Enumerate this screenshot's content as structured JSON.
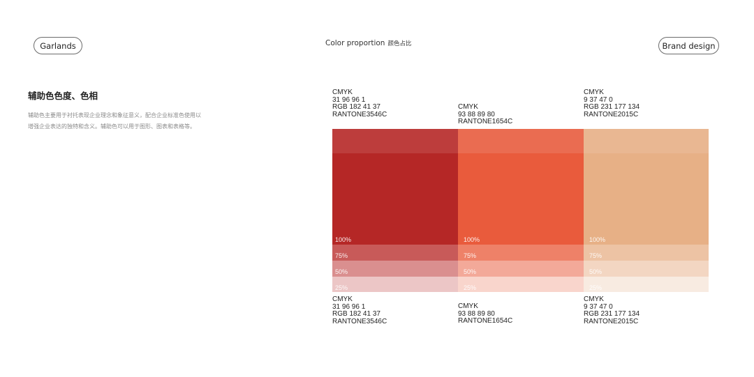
{
  "header": {
    "left_pill": "Garlands",
    "right_pill": "Brand design",
    "center_title": "Color proportion",
    "center_subtitle": "颜色占比"
  },
  "section": {
    "title": "辅助色色度、色相",
    "description": "辅助色主要用于衬托表现企业理念和象征意义，配合企业标准色使用以增强企业表达的独特和含义。辅助色可以用于图形、图表和表格等。"
  },
  "colors": [
    {
      "hex": "#b52726",
      "top_hex": "#bd3d3c",
      "tint75": "#c85a59",
      "tint50": "#da8f8f",
      "tint25": "#ecc6c6",
      "top_lines": [
        "CMYK",
        "31 96 96 1",
        "RGB 182 41 37",
        "RANTONE3546C"
      ],
      "bottom_lines": [
        "CMYK",
        "31 96 96 1",
        "RGB 182 41 37",
        "RANTONE3546C"
      ],
      "pct100": "100%",
      "pct75": "75%",
      "pct50": "50%",
      "pct25": "25%"
    },
    {
      "hex": "#e95b3c",
      "top_hex": "#ea6c51",
      "tint75": "#ee8168",
      "tint50": "#f3a999",
      "tint25": "#f9d5cc",
      "top_lines": [
        "CMYK",
        "93 88 89 80",
        "RANTONE1654C"
      ],
      "bottom_lines": [
        "CMYK",
        "93 88 89 80",
        "RANTONE1654C"
      ],
      "pct100": "100%",
      "pct75": "75%",
      "pct50": "50%",
      "pct25": "25%"
    },
    {
      "hex": "#e7b086",
      "top_hex": "#e9b792",
      "tint75": "#edc3a4",
      "tint50": "#f3d6c2",
      "tint25": "#f8ebe1",
      "top_lines": [
        "CMYK",
        "9 37 47 0",
        "RGB 231 177 134",
        "RANTONE2015C"
      ],
      "bottom_lines": [
        "CMYK",
        "9 37 47 0",
        "RGB 231 177 134",
        "RANTONE2015C"
      ],
      "pct100": "100%",
      "pct75": "75%",
      "pct50": "50%",
      "pct25": "25%"
    }
  ]
}
